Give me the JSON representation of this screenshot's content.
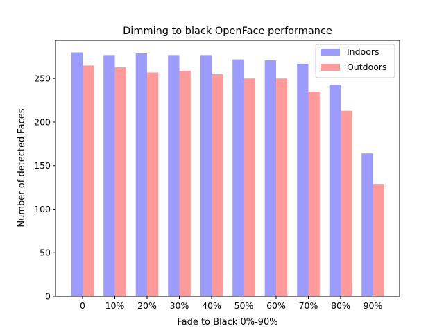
{
  "chart_data": {
    "type": "bar",
    "title": "Dimming to black OpenFace performance",
    "xlabel": "Fade to Black 0%-90%",
    "ylabel": "Number of detected Faces",
    "categories": [
      "0",
      "10%",
      "20%",
      "30%",
      "40%",
      "50%",
      "60%",
      "70%",
      "80%",
      "90%"
    ],
    "series": [
      {
        "name": "Indoors",
        "color": "#9c9cff",
        "values": [
          280,
          277,
          279,
          277,
          277,
          272,
          271,
          267,
          243,
          164
        ]
      },
      {
        "name": "Outdoors",
        "color": "#ff9a9a",
        "values": [
          265,
          263,
          257,
          259,
          255,
          250,
          250,
          235,
          213,
          129
        ]
      }
    ],
    "ylim": [
      0,
      294
    ],
    "yticks": [
      0,
      50,
      100,
      150,
      200,
      250
    ],
    "grid": false,
    "legend_position": "top-right"
  }
}
